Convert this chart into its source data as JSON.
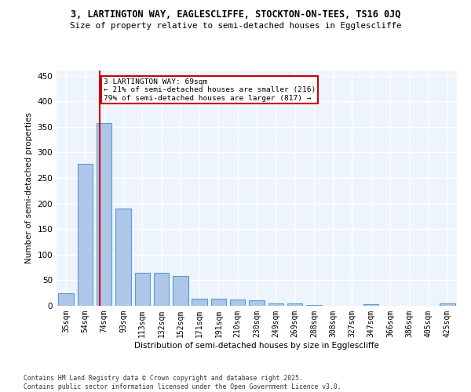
{
  "title1": "3, LARTINGTON WAY, EAGLESCLIFFE, STOCKTON-ON-TEES, TS16 0JQ",
  "title2": "Size of property relative to semi-detached houses in Egglescliffe",
  "xlabel": "Distribution of semi-detached houses by size in Egglescliffe",
  "ylabel": "Number of semi-detached properties",
  "categories": [
    "35sqm",
    "54sqm",
    "74sqm",
    "93sqm",
    "113sqm",
    "132sqm",
    "152sqm",
    "171sqm",
    "191sqm",
    "210sqm",
    "230sqm",
    "249sqm",
    "269sqm",
    "288sqm",
    "308sqm",
    "327sqm",
    "347sqm",
    "366sqm",
    "386sqm",
    "405sqm",
    "425sqm"
  ],
  "values": [
    25,
    278,
    357,
    190,
    65,
    65,
    58,
    14,
    14,
    13,
    10,
    5,
    5,
    1,
    0,
    0,
    3,
    0,
    0,
    0,
    4
  ],
  "bar_color": "#AEC6E8",
  "bar_edge_color": "#5B9BD5",
  "background_color": "#EEF4FB",
  "grid_color": "#FFFFFF",
  "annotation_title": "3 LARTINGTON WAY: 69sqm",
  "annotation_line1": "← 21% of semi-detached houses are smaller (216)",
  "annotation_line2": "79% of semi-detached houses are larger (817) →",
  "annotation_box_color": "#FFFFFF",
  "annotation_box_edge": "#CC0000",
  "vline_color": "#CC0000",
  "ylim": [
    0,
    460
  ],
  "yticks": [
    0,
    50,
    100,
    150,
    200,
    250,
    300,
    350,
    400,
    450
  ],
  "footer1": "Contains HM Land Registry data © Crown copyright and database right 2025.",
  "footer2": "Contains public sector information licensed under the Open Government Licence v3.0."
}
